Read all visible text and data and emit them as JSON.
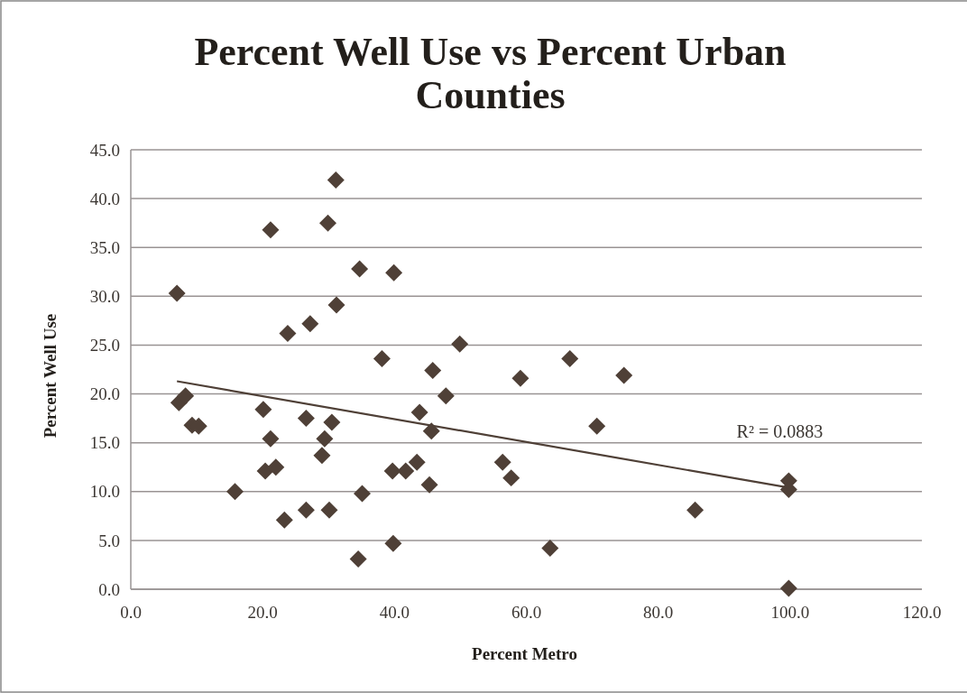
{
  "chart_data": {
    "type": "scatter",
    "title": "Percent Well Use vs Percent Urban Counties",
    "xlabel": "Percent Metro",
    "ylabel": "Percent Well Use",
    "x": [
      7.0,
      7.3,
      8.3,
      9.3,
      10.3,
      15.8,
      20.1,
      20.4,
      21.2,
      21.2,
      22.0,
      23.3,
      23.8,
      26.6,
      26.6,
      27.2,
      29.0,
      29.4,
      29.9,
      30.1,
      30.5,
      31.1,
      31.2,
      34.5,
      34.7,
      35.1,
      38.1,
      39.7,
      39.8,
      39.9,
      41.7,
      43.4,
      43.8,
      45.3,
      45.6,
      45.8,
      47.8,
      49.9,
      56.4,
      57.7,
      59.1,
      63.6,
      66.6,
      70.7,
      74.8,
      85.6,
      99.8,
      99.8,
      99.8
    ],
    "series": [
      {
        "marker": "diamond",
        "color": "#4f4037",
        "values": [
          30.3,
          19.1,
          19.8,
          16.8,
          16.7,
          10.0,
          18.4,
          12.1,
          15.4,
          36.8,
          12.5,
          7.1,
          26.2,
          17.5,
          8.1,
          27.2,
          13.7,
          15.4,
          37.5,
          8.1,
          17.1,
          41.9,
          29.1,
          3.1,
          32.8,
          9.8,
          23.6,
          12.1,
          4.7,
          32.4,
          12.1,
          13.0,
          18.1,
          10.7,
          16.2,
          22.4,
          19.8,
          25.1,
          13.0,
          11.4,
          21.6,
          4.2,
          23.6,
          16.7,
          21.9,
          8.1,
          11.1,
          10.2,
          0.1
        ]
      },
      {
        "type": "line",
        "color": "#4f4037",
        "x": [
          7.0,
          99.8
        ],
        "values": [
          21.3,
          10.4
        ]
      }
    ],
    "annotations": [
      "R² = 0.0883"
    ],
    "xlim": [
      0,
      120
    ],
    "xticks": [
      {
        "value": 0,
        "label": "0.0"
      },
      {
        "value": 20,
        "label": "20.0"
      },
      {
        "value": 40,
        "label": "40.0"
      },
      {
        "value": 60,
        "label": "60.0"
      },
      {
        "value": 80,
        "label": "80.0"
      },
      {
        "value": 100,
        "label": "100.0"
      },
      {
        "value": 120,
        "label": "120.0"
      }
    ],
    "ylim": [
      0,
      45
    ],
    "yticks": [
      {
        "value": 0,
        "label": "0.0"
      },
      {
        "value": 5,
        "label": "5.0"
      },
      {
        "value": 10,
        "label": "10.0"
      },
      {
        "value": 15,
        "label": "15.0"
      },
      {
        "value": 20,
        "label": "20.0"
      },
      {
        "value": 25,
        "label": "25.0"
      },
      {
        "value": 30,
        "label": "30.0"
      },
      {
        "value": 35,
        "label": "35.0"
      },
      {
        "value": 40,
        "label": "40.0"
      },
      {
        "value": 45,
        "label": "45.0"
      }
    ],
    "grid": "y"
  }
}
